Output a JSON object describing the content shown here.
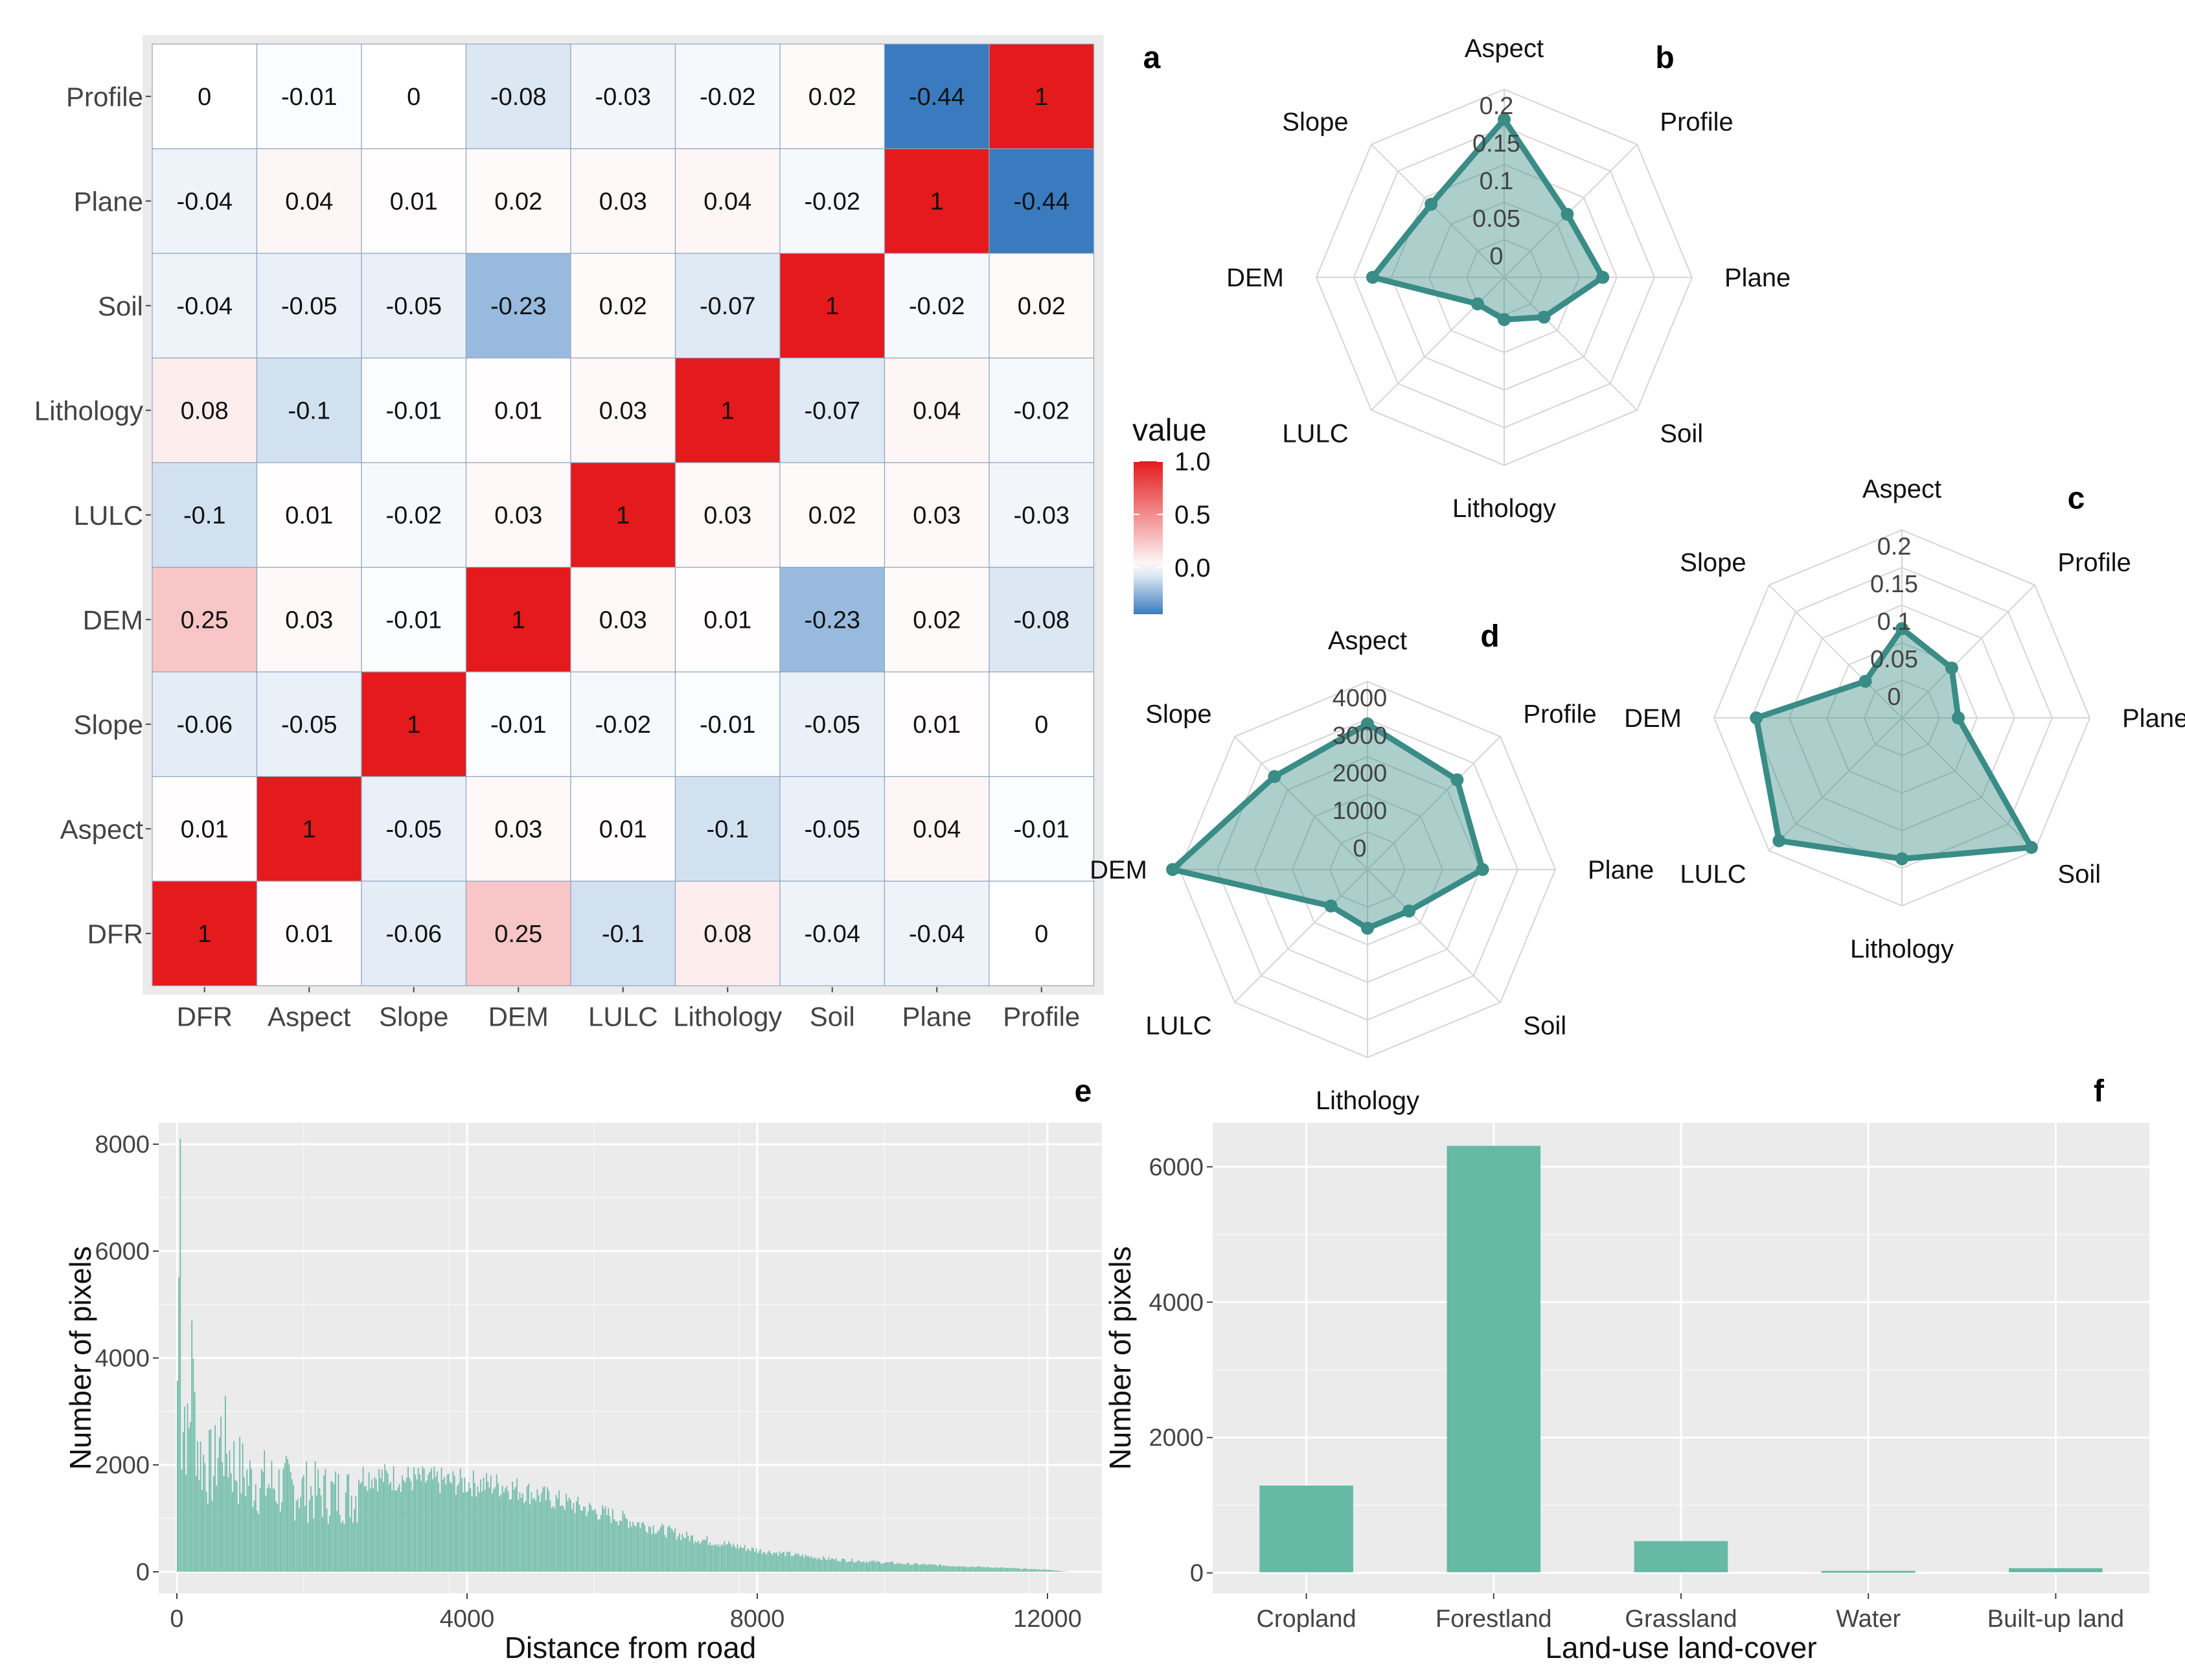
{
  "chart_data": [
    {
      "id": "a",
      "panel_label": "a",
      "type": "heatmap",
      "title": "",
      "x_labels": [
        "DFR",
        "Aspect",
        "Slope",
        "DEM",
        "LULC",
        "Lithology",
        "Soil",
        "Plane",
        "Profile"
      ],
      "y_labels": [
        "DFR",
        "Aspect",
        "Slope",
        "DEM",
        "LULC",
        "Lithology",
        "Soil",
        "Plane",
        "Profile"
      ],
      "matrix": [
        [
          1,
          0.01,
          -0.06,
          0.25,
          -0.1,
          0.08,
          -0.04,
          -0.04,
          0
        ],
        [
          0.01,
          1,
          -0.05,
          0.03,
          0.01,
          -0.1,
          -0.05,
          0.04,
          -0.01
        ],
        [
          -0.06,
          -0.05,
          1,
          -0.01,
          -0.02,
          -0.01,
          -0.05,
          0.01,
          0
        ],
        [
          0.25,
          0.03,
          -0.01,
          1,
          0.03,
          0.01,
          -0.23,
          0.02,
          -0.08
        ],
        [
          -0.1,
          0.01,
          -0.02,
          0.03,
          1,
          0.03,
          0.02,
          0.03,
          -0.03
        ],
        [
          0.08,
          -0.1,
          -0.01,
          0.01,
          0.03,
          1,
          -0.07,
          0.04,
          -0.02
        ],
        [
          -0.04,
          -0.05,
          -0.05,
          -0.23,
          0.02,
          -0.07,
          1,
          -0.02,
          0.02
        ],
        [
          -0.04,
          0.04,
          0.01,
          0.02,
          0.03,
          0.04,
          -0.02,
          1,
          -0.44
        ],
        [
          0,
          -0.01,
          0,
          -0.08,
          -0.03,
          -0.02,
          0.02,
          -0.44,
          1
        ]
      ],
      "legend": {
        "title": "value",
        "ticks": [
          "1.0",
          "0.5",
          "0.0"
        ],
        "range": [
          -0.44,
          1.0
        ]
      },
      "colors": {
        "low": "#3a7bbf",
        "mid": "#ffffff",
        "high": "#e41a1c",
        "background": "#ebebeb"
      }
    },
    {
      "id": "b",
      "panel_label": "b",
      "type": "radar",
      "axes": [
        "Aspect",
        "Profile",
        "Plane",
        "Soil",
        "Lithology",
        "LULC",
        "DEM",
        "Slope"
      ],
      "ticks": [
        "0",
        "0.05",
        "0.1",
        "0.15",
        "0.2"
      ],
      "range": [
        0,
        0.2
      ],
      "values": [
        0.168,
        0.095,
        0.105,
        0.06,
        0.045,
        0.04,
        0.14,
        0.11
      ],
      "color": "#3a8c86"
    },
    {
      "id": "c",
      "panel_label": "c",
      "type": "radar",
      "axes": [
        "Aspect",
        "Profile",
        "Plane",
        "Soil",
        "Lithology",
        "LULC",
        "DEM",
        "Slope"
      ],
      "ticks": [
        "0",
        "0.05",
        "0.1",
        "0.15",
        "0.2"
      ],
      "range": [
        0,
        0.2
      ],
      "values": [
        0.095,
        0.075,
        0.06,
        0.195,
        0.15,
        0.185,
        0.155,
        0.055
      ],
      "color": "#3a8c86"
    },
    {
      "id": "d",
      "panel_label": "d",
      "type": "radar",
      "axes": [
        "Aspect",
        "Profile",
        "Plane",
        "Soil",
        "Lithology",
        "LULC",
        "DEM",
        "Slope"
      ],
      "ticks": [
        "0",
        "1000",
        "2000",
        "3000",
        "4000"
      ],
      "range": [
        0,
        4000
      ],
      "values": [
        3100,
        2700,
        2450,
        1250,
        1250,
        1100,
        4150,
        2800
      ],
      "color": "#3a8c86"
    },
    {
      "id": "e",
      "panel_label": "e",
      "type": "bar",
      "subtype": "histogram",
      "xlabel": "Distance from road",
      "ylabel": "Number of pixels",
      "xlim": [
        -250,
        12750
      ],
      "ylim": [
        -400,
        8400
      ],
      "xticks": [
        0,
        4000,
        8000,
        12000
      ],
      "yticks": [
        0,
        2000,
        4000,
        6000,
        8000
      ],
      "envelope_x": [
        0,
        30,
        60,
        100,
        150,
        200,
        300,
        400,
        500,
        600,
        800,
        1000,
        1500,
        2000,
        3000,
        4000,
        4500,
        5000,
        6000,
        7000,
        8000,
        9000,
        10000,
        11000,
        12000,
        12300
      ],
      "envelope_y": [
        4800,
        8100,
        3200,
        4100,
        3000,
        4700,
        2900,
        2700,
        2500,
        3400,
        2600,
        2300,
        2100,
        1950,
        1850,
        1750,
        1700,
        1500,
        1100,
        700,
        420,
        250,
        160,
        100,
        40,
        0
      ],
      "color": "#66b9a4"
    },
    {
      "id": "f",
      "panel_label": "f",
      "type": "bar",
      "xlabel": "Land-use land-cover",
      "ylabel": "Number of pixels",
      "categories": [
        "Cropland",
        "Forestland",
        "Grassland",
        "Water",
        "Built-up land"
      ],
      "values": [
        1280,
        6300,
        460,
        20,
        60
      ],
      "ylim": [
        -300,
        6650
      ],
      "yticks": [
        0,
        2000,
        4000,
        6000
      ],
      "color": "#66b9a4"
    }
  ]
}
